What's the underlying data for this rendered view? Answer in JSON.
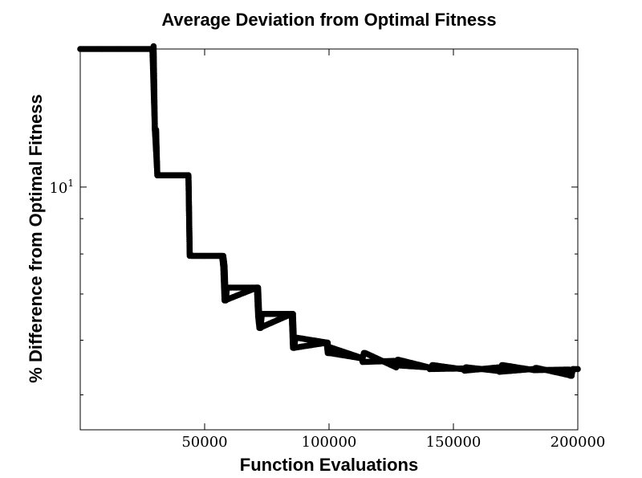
{
  "chart_data": {
    "type": "line",
    "title": "Average Deviation from Optimal Fitness",
    "xlabel": "Function Evaluations",
    "ylabel": "% Difference from Optimal Fitness",
    "xlim": [
      0,
      200000
    ],
    "ylim": [
      4.45,
      15.85
    ],
    "yscale": "log",
    "x_ticks": [
      50000,
      100000,
      150000,
      200000
    ],
    "x_tick_labels": [
      "50000",
      "100000",
      "150000",
      "200000"
    ],
    "y_ticks": [
      10
    ],
    "y_tick_labels": [
      {
        "base": "10",
        "exp": "1"
      }
    ],
    "grid": false,
    "legend": "none",
    "marker": "circle",
    "color": "#000000",
    "series": [
      {
        "x": [
          0,
          29000,
          30000,
          31000,
          43500,
          44000,
          45000,
          57500,
          58000,
          58500,
          59000,
          71500,
          72000,
          72500,
          73000,
          85500,
          86000,
          86500,
          87000,
          99500,
          100000,
          100500,
          101000,
          113500,
          114000,
          114500,
          127000,
          127500,
          128000,
          141000,
          141500,
          142000,
          154500,
          155000,
          155500,
          169000,
          169500,
          170000,
          182500,
          183000,
          183500,
          197500,
          198000,
          198500,
          200000
        ],
        "y": [
          15.85,
          15.85,
          12.1,
          10.4,
          10.4,
          8.0,
          7.95,
          7.95,
          7.7,
          6.85,
          7.15,
          7.15,
          6.45,
          6.25,
          6.55,
          6.55,
          5.85,
          6.05,
          6.05,
          5.95,
          5.75,
          5.85,
          5.85,
          5.65,
          5.75,
          5.75,
          5.48,
          5.62,
          5.62,
          5.47,
          5.52,
          5.52,
          5.44,
          5.48,
          5.48,
          5.41,
          5.52,
          5.52,
          5.43,
          5.47,
          5.47,
          5.33,
          5.45,
          5.45,
          5.45
        ]
      },
      {
        "x": [
          29000,
          29500,
          30000,
          30500,
          31000,
          43000,
          43500,
          44000,
          57000,
          57500,
          58000,
          71000,
          71500,
          72000,
          85000,
          85500,
          86000,
          99000,
          99500,
          100000,
          113000,
          113500,
          126000,
          126500,
          140000,
          140500,
          154000,
          154500,
          168000,
          168500,
          182000,
          182500,
          196500,
          197000,
          197500
        ],
        "y": [
          15.85,
          16.0,
          12.1,
          12.1,
          10.4,
          10.4,
          10.4,
          7.95,
          7.95,
          7.65,
          6.85,
          7.15,
          6.5,
          6.25,
          6.55,
          5.85,
          5.85,
          5.95,
          5.75,
          5.75,
          5.65,
          5.58,
          5.6,
          5.52,
          5.48,
          5.45,
          5.46,
          5.42,
          5.48,
          5.4,
          5.45,
          5.43,
          5.44,
          5.33,
          5.33
        ]
      }
    ]
  }
}
